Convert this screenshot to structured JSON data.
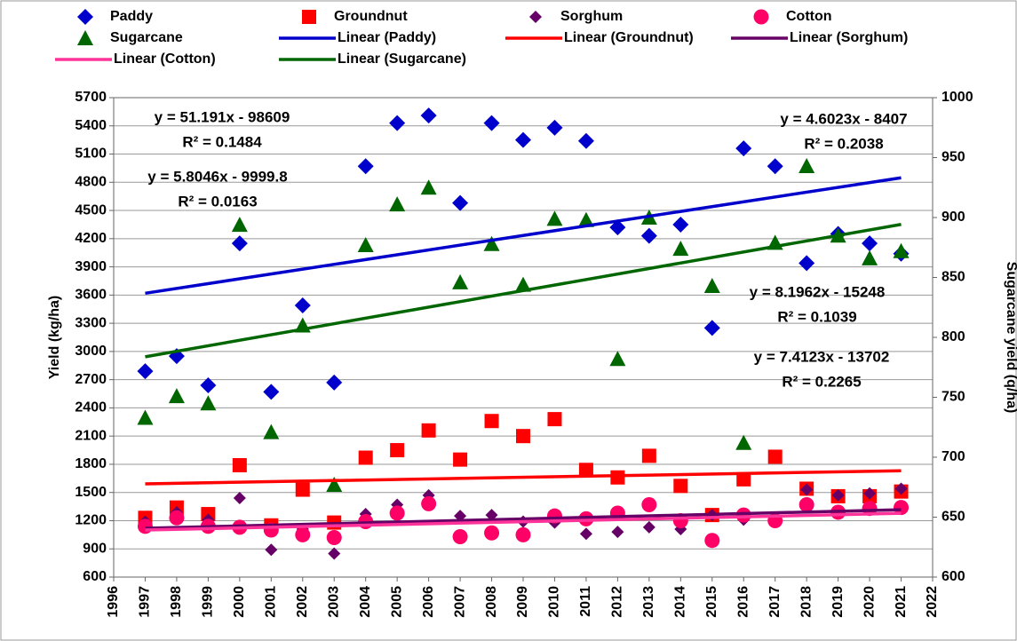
{
  "chart_data": {
    "type": "scatter",
    "x": [
      1997,
      1998,
      1999,
      2000,
      2001,
      2002,
      2003,
      2004,
      2005,
      2006,
      2007,
      2008,
      2009,
      2010,
      2011,
      2012,
      2013,
      2014,
      2015,
      2016,
      2017,
      2018,
      2019,
      2020,
      2021
    ],
    "series": [
      {
        "name": "Paddy",
        "color": "#0000cc",
        "marker": "diamond",
        "values": [
          2790,
          2950,
          2640,
          4150,
          2570,
          3490,
          2670,
          4970,
          5430,
          5510,
          4580,
          5430,
          5250,
          5380,
          5240,
          4320,
          4230,
          4350,
          3250,
          5160,
          4970,
          3940,
          4250,
          4150,
          4040
        ]
      },
      {
        "name": "Groundnut",
        "color": "#ff0000",
        "marker": "square",
        "values": [
          1230,
          1340,
          1270,
          1790,
          1150,
          1530,
          1180,
          1870,
          1950,
          2160,
          1850,
          2260,
          2100,
          2280,
          1740,
          1660,
          1890,
          1570,
          1260,
          1640,
          1880,
          1540,
          1460,
          1460,
          1510
        ]
      },
      {
        "name": "Sorghum",
        "color": "#660066",
        "marker": "small-diamond",
        "values": [
          1190,
          1290,
          1210,
          1440,
          890,
          1110,
          850,
          1270,
          1370,
          1470,
          1250,
          1260,
          1190,
          1180,
          1060,
          1080,
          1130,
          1110,
          1260,
          1210,
          1230,
          1530,
          1470,
          1490,
          1540
        ]
      },
      {
        "name": "Cotton",
        "color": "#ff0066",
        "marker": "circle",
        "values": [
          1140,
          1230,
          1140,
          1130,
          1100,
          1050,
          1020,
          1190,
          1280,
          1380,
          1030,
          1070,
          1050,
          1250,
          1220,
          1280,
          1370,
          1200,
          990,
          1260,
          1200,
          1370,
          1290,
          1330,
          1340
        ]
      },
      {
        "name": "Sugarcane",
        "color": "#006600",
        "marker": "triangle",
        "axis": "y2",
        "values": [
          733,
          751,
          745,
          894,
          721,
          810,
          677,
          877,
          911,
          925,
          846,
          878,
          844,
          899,
          898,
          782,
          900,
          874,
          843,
          712,
          879,
          943,
          885,
          866,
          872
        ]
      }
    ],
    "trendlines": [
      {
        "name": "Linear (Paddy)",
        "color": "#0000cc",
        "slope": 51.191,
        "intercept": -98609,
        "equation": "y = 51.191x - 98609",
        "r2": "R² = 0.1484"
      },
      {
        "name": "Linear (Groundnut)",
        "color": "#ff0000",
        "slope": 5.8046,
        "intercept": -9999.8,
        "equation": "y = 5.8046x - 9999.8",
        "r2": "R² = 0.0163"
      },
      {
        "name": "Linear (Sorghum)",
        "color": "#660066",
        "slope": 8.1962,
        "intercept": -15248,
        "equation": "y = 8.1962x - 15248",
        "r2": "R² = 0.1039"
      },
      {
        "name": "Linear (Cotton)",
        "color": "#ff3399",
        "slope": 7.4123,
        "intercept": -13702,
        "equation": "y = 7.4123x - 13702",
        "r2": "R² = 0.2265"
      },
      {
        "name": "Linear (Sugarcane)",
        "color": "#006600",
        "axis": "y2",
        "slope": 4.6023,
        "intercept": -8407,
        "equation": "y = 4.6023x - 8407",
        "r2": "R² = 0.2038"
      }
    ],
    "y_label": "Yield (kg/ha)",
    "y2_label": "Sugarcane yield (q/ha)",
    "xlim": [
      1996,
      2022
    ],
    "xticks": [
      1996,
      1997,
      1998,
      1999,
      2000,
      2001,
      2002,
      2003,
      2004,
      2005,
      2006,
      2007,
      2008,
      2009,
      2010,
      2011,
      2012,
      2013,
      2014,
      2015,
      2016,
      2017,
      2018,
      2019,
      2020,
      2021,
      2022
    ],
    "ylim": [
      600,
      5700
    ],
    "yticks": [
      600,
      900,
      1200,
      1500,
      1800,
      2100,
      2400,
      2700,
      3000,
      3300,
      3600,
      3900,
      4200,
      4500,
      4800,
      5100,
      5400,
      5700
    ],
    "y2lim": [
      600,
      1000
    ],
    "y2ticks": [
      600,
      650,
      700,
      750,
      800,
      850,
      900,
      950,
      1000
    ],
    "grid": true,
    "legend": "top"
  }
}
